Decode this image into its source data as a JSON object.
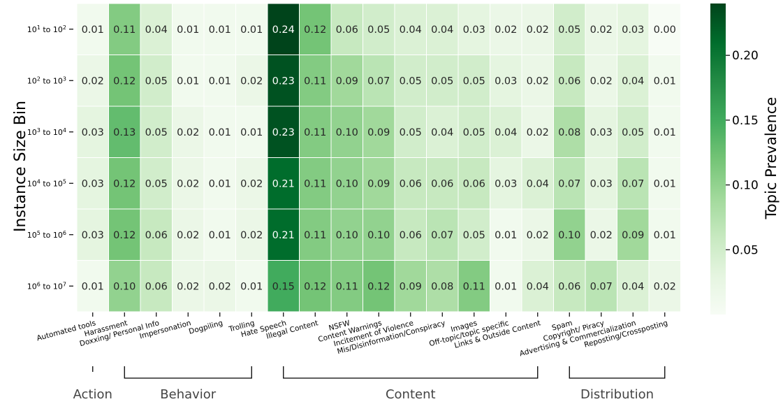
{
  "chart_data": {
    "type": "heatmap",
    "ylabel": "Instance Size Bin",
    "colorbar_label": "Topic Prevalence",
    "colorbar_ticks": [
      "0.05",
      "0.10",
      "0.15",
      "0.20"
    ],
    "colorbar_tick_values": [
      0.05,
      0.1,
      0.15,
      0.2
    ],
    "color_range": [
      0.0,
      0.24
    ],
    "colormap": [
      "#f7fcf5",
      "#e5f5e0",
      "#c7e9c0",
      "#a1d99b",
      "#74c476",
      "#41ab5d",
      "#238b45",
      "#006d2c",
      "#00441b"
    ],
    "rows": [
      {
        "base": "10",
        "from": "1",
        "mid": " to ",
        "base2": "10",
        "to": "2"
      },
      {
        "base": "10",
        "from": "2",
        "mid": " to ",
        "base2": "10",
        "to": "3"
      },
      {
        "base": "10",
        "from": "3",
        "mid": " to ",
        "base2": "10",
        "to": "4"
      },
      {
        "base": "10",
        "from": "4",
        "mid": " to ",
        "base2": "10",
        "to": "5"
      },
      {
        "base": "10",
        "from": "5",
        "mid": " to ",
        "base2": "10",
        "to": "6"
      },
      {
        "base": "10",
        "from": "6",
        "mid": " to ",
        "base2": "10",
        "to": "7"
      }
    ],
    "columns": [
      "Automated tools",
      "Harassment",
      "Doxxing/ Personal Info",
      "Impersonation",
      "Dogpiling",
      "Trolling",
      "Hate Speech",
      "Illegal Content",
      "NSFW",
      "Content Warnings",
      "Incitement of Violence",
      "Mis/Disinformation/Conspiracy",
      "Images",
      "Off-topic/topic specific",
      "Links & Outside Content",
      "Spam",
      "Copyright/ Piracy",
      "Advertising & Commercialization",
      "Reposting/Crossposting"
    ],
    "values": [
      [
        0.01,
        0.11,
        0.04,
        0.01,
        0.01,
        0.01,
        0.24,
        0.12,
        0.06,
        0.05,
        0.04,
        0.04,
        0.03,
        0.02,
        0.02,
        0.05,
        0.02,
        0.03,
        0.0
      ],
      [
        0.02,
        0.12,
        0.05,
        0.01,
        0.01,
        0.02,
        0.23,
        0.11,
        0.09,
        0.07,
        0.05,
        0.05,
        0.05,
        0.03,
        0.02,
        0.06,
        0.02,
        0.04,
        0.01
      ],
      [
        0.03,
        0.13,
        0.05,
        0.02,
        0.01,
        0.01,
        0.23,
        0.11,
        0.1,
        0.09,
        0.05,
        0.04,
        0.05,
        0.04,
        0.02,
        0.08,
        0.03,
        0.05,
        0.01
      ],
      [
        0.03,
        0.12,
        0.05,
        0.02,
        0.01,
        0.02,
        0.21,
        0.11,
        0.1,
        0.09,
        0.06,
        0.06,
        0.06,
        0.03,
        0.04,
        0.07,
        0.03,
        0.07,
        0.01
      ],
      [
        0.03,
        0.12,
        0.06,
        0.02,
        0.01,
        0.02,
        0.21,
        0.11,
        0.1,
        0.1,
        0.06,
        0.07,
        0.05,
        0.01,
        0.02,
        0.1,
        0.02,
        0.09,
        0.01
      ],
      [
        0.01,
        0.1,
        0.06,
        0.02,
        0.02,
        0.01,
        0.15,
        0.12,
        0.11,
        0.12,
        0.09,
        0.08,
        0.11,
        0.01,
        0.04,
        0.06,
        0.07,
        0.04,
        0.02
      ]
    ],
    "groups": [
      {
        "name": "Action",
        "start": 0,
        "end": 0
      },
      {
        "name": "Behavior",
        "start": 1,
        "end": 5
      },
      {
        "name": "Content",
        "start": 6,
        "end": 14
      },
      {
        "name": "Distribution",
        "start": 15,
        "end": 18
      }
    ]
  }
}
